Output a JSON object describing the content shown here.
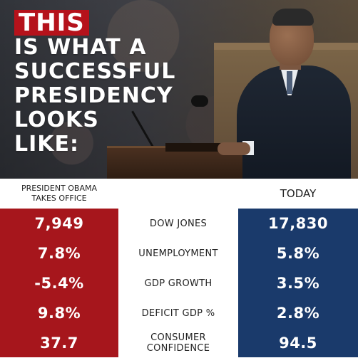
{
  "headline": {
    "badge": "THIS",
    "lines": [
      "IS WHAT A",
      "SUCCESSFUL",
      "PRESIDENCY",
      "LOOKS",
      "LIKE:"
    ]
  },
  "columns": {
    "left_header_line1": "PRESIDENT OBAMA",
    "left_header_line2": "TAKES OFFICE",
    "right_header": "TODAY"
  },
  "rows": [
    {
      "label": "DOW JONES",
      "before": "7,949",
      "today": "17,830"
    },
    {
      "label": "UNEMPLOYMENT",
      "before": "7.8%",
      "today": "5.8%"
    },
    {
      "label": "GDP GROWTH",
      "before": "-5.4%",
      "today": "3.5%"
    },
    {
      "label": "DEFICIT GDP %",
      "before": "9.8%",
      "today": "2.8%"
    },
    {
      "label_line1": "CONSUMER",
      "label_line2": "CONFIDENCE",
      "before": "37.7",
      "today": "94.5"
    }
  ],
  "colors": {
    "red": "#a6161c",
    "blue": "#1a3a6b",
    "badge": "#b5121b"
  }
}
